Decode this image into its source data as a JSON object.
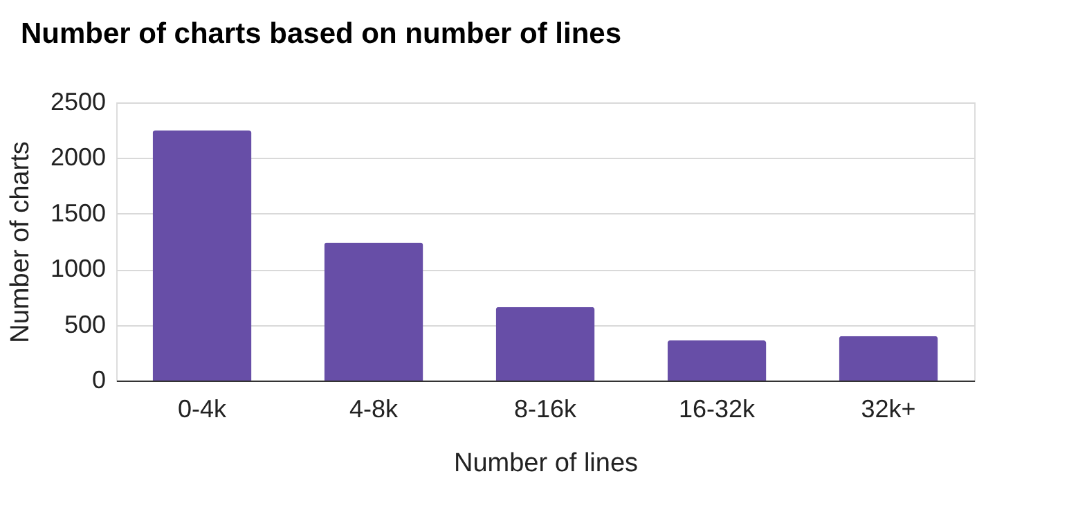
{
  "chart_data": {
    "type": "bar",
    "title": "Number of charts based on number of lines",
    "xlabel": "Number of lines",
    "ylabel": "Number of charts",
    "categories": [
      "0-4k",
      "4-8k",
      "8-16k",
      "16-32k",
      "32k+"
    ],
    "values": [
      2250,
      1240,
      660,
      360,
      400
    ],
    "color": "#674ea7",
    "ylim": [
      0,
      2500
    ],
    "yticks": [
      0,
      500,
      1000,
      1500,
      2000,
      2500
    ],
    "grid": "y"
  }
}
